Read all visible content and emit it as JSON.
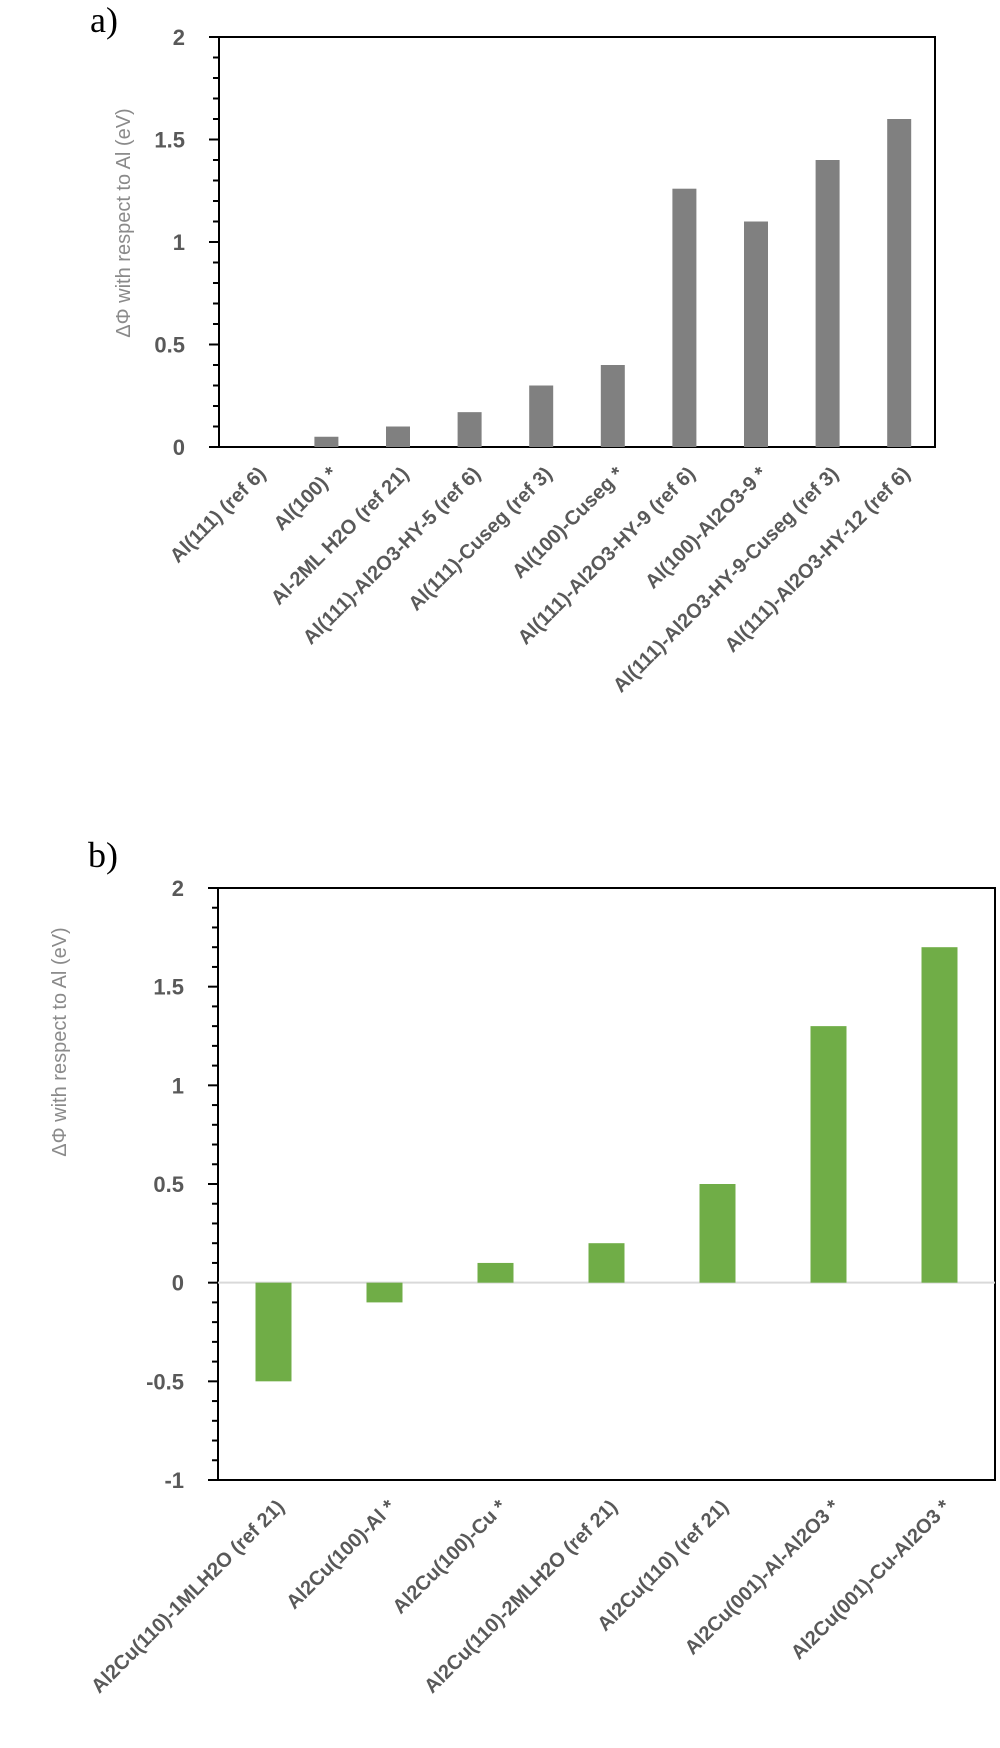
{
  "chart_data": [
    {
      "panel_label": "a)",
      "type": "bar",
      "ylabel": "ΔΦ with respect to Al (eV)",
      "ylim": [
        0,
        2
      ],
      "ytick_step": 0.5,
      "yticks": [
        "0",
        "0.5",
        "1",
        "1.5",
        "2"
      ],
      "grid": false,
      "bar_color": "#808080",
      "categories": [
        "Al(111) (ref 6)",
        "Al(100) *",
        "Al-2ML H2O (ref 21)",
        "Al(111)-Al2O3-HY-5 (ref 6)",
        "Al(111)-Cuseg (ref 3)",
        "Al(100)-Cuseg *",
        "Al(111)-Al2O3-HY-9 (ref 6)",
        "Al(100)-Al2O3-9 *",
        "Al(111)-Al2O3-HY-9-Cuseg (ref 3)",
        "Al(111)-Al2O3-HY-12 (ref 6)"
      ],
      "values": [
        0,
        0.05,
        0.1,
        0.17,
        0.3,
        0.4,
        1.26,
        1.1,
        1.4,
        1.6
      ]
    },
    {
      "panel_label": "b)",
      "type": "bar",
      "ylabel": "ΔΦ with respect to  Al (eV)",
      "ylim": [
        -1,
        2
      ],
      "ytick_step": 0.5,
      "yticks": [
        "-1",
        "-0.5",
        "0",
        "0.5",
        "1",
        "1.5",
        "2"
      ],
      "grid": false,
      "bar_color": "#70ad47",
      "categories": [
        "Al2Cu(110)-1MLH2O (ref 21)",
        "Al2Cu(100)-Al *",
        "Al2Cu(100)-Cu *",
        "Al2Cu(110)-2MLH2O (ref 21)",
        "Al2Cu(110) (ref 21)",
        "Al2Cu(001)-Al-Al2O3 *",
        "Al2Cu(001)-Cu-Al2O3 *"
      ],
      "values": [
        -0.5,
        -0.1,
        0.1,
        0.2,
        0.5,
        1.3,
        1.7
      ]
    }
  ]
}
